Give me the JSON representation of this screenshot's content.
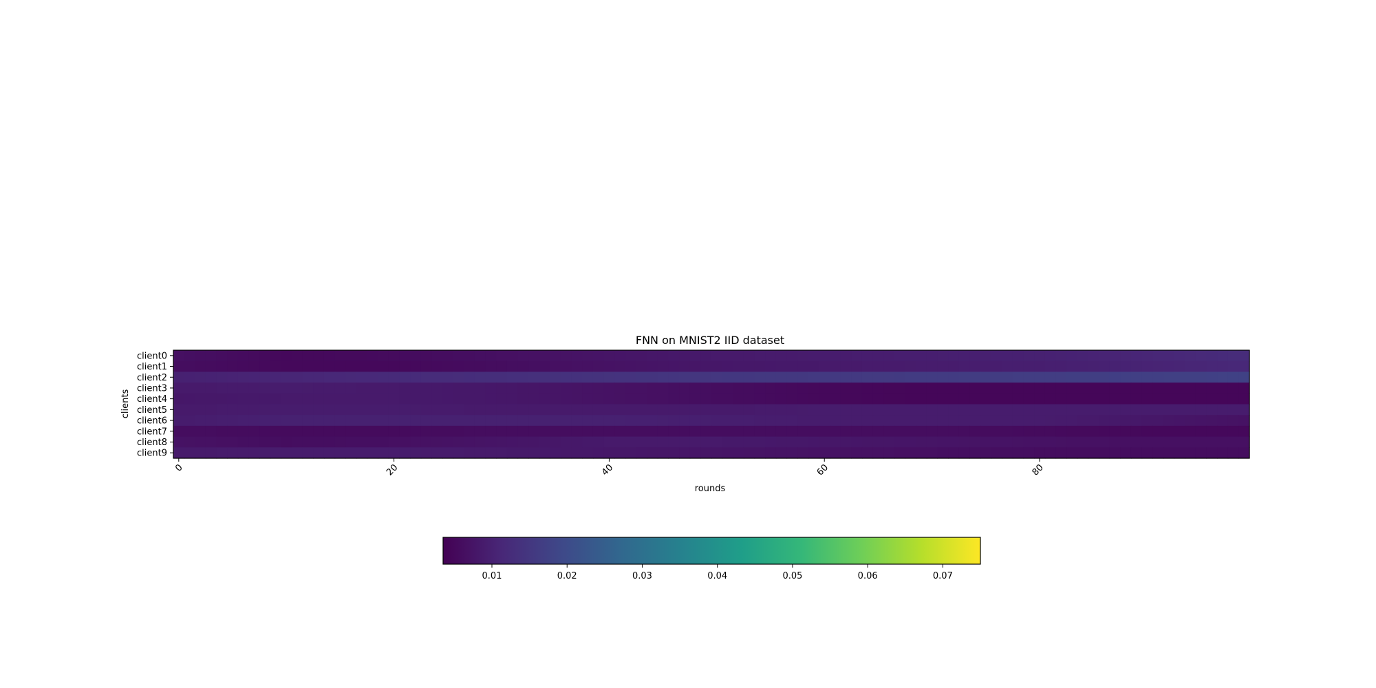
{
  "chart_data": {
    "type": "heatmap",
    "title": "FNN on MNIST2 IID dataset",
    "xlabel": "rounds",
    "ylabel": "clients",
    "rows": [
      "client0",
      "client1",
      "client2",
      "client3",
      "client4",
      "client5",
      "client6",
      "client7",
      "client8",
      "client9"
    ],
    "x_ticks": [
      0,
      20,
      40,
      60,
      80
    ],
    "x_range": [
      0,
      99
    ],
    "n_columns": 100,
    "grid": false,
    "colormap": "viridis",
    "colorbar": {
      "orientation": "horizontal",
      "placement": "bottom",
      "range": [
        0.0035,
        0.075
      ],
      "ticks": [
        0.01,
        0.02,
        0.03,
        0.04,
        0.05,
        0.06,
        0.07
      ],
      "tick_labels": [
        "0.01",
        "0.02",
        "0.03",
        "0.04",
        "0.05",
        "0.06",
        "0.07"
      ]
    },
    "row_values_at_rounds": {
      "rounds": [
        0,
        10,
        20,
        30,
        40,
        50,
        60,
        70,
        80,
        90,
        99
      ],
      "values": [
        [
          0.0065,
          0.005,
          0.0055,
          0.0065,
          0.0075,
          0.0085,
          0.009,
          0.0095,
          0.01,
          0.011,
          0.0125
        ],
        [
          0.006,
          0.005,
          0.005,
          0.006,
          0.007,
          0.008,
          0.0085,
          0.009,
          0.0095,
          0.0105,
          0.0115
        ],
        [
          0.01,
          0.011,
          0.012,
          0.013,
          0.014,
          0.015,
          0.0155,
          0.016,
          0.0165,
          0.017,
          0.0175
        ],
        [
          0.0085,
          0.009,
          0.0085,
          0.008,
          0.007,
          0.006,
          0.005,
          0.0045,
          0.0045,
          0.0045,
          0.0045
        ],
        [
          0.008,
          0.0085,
          0.0085,
          0.008,
          0.007,
          0.006,
          0.005,
          0.0045,
          0.0045,
          0.0045,
          0.0045
        ],
        [
          0.0085,
          0.009,
          0.009,
          0.0085,
          0.0085,
          0.0085,
          0.009,
          0.009,
          0.009,
          0.009,
          0.009
        ],
        [
          0.009,
          0.01,
          0.01,
          0.01,
          0.01,
          0.0095,
          0.009,
          0.009,
          0.009,
          0.008,
          0.007
        ],
        [
          0.006,
          0.0055,
          0.0055,
          0.006,
          0.006,
          0.006,
          0.006,
          0.006,
          0.0055,
          0.005,
          0.005
        ],
        [
          0.007,
          0.006,
          0.0065,
          0.0075,
          0.0085,
          0.0085,
          0.008,
          0.0075,
          0.007,
          0.0065,
          0.0065
        ],
        [
          0.0085,
          0.009,
          0.009,
          0.0085,
          0.008,
          0.0075,
          0.007,
          0.0065,
          0.006,
          0.006,
          0.006
        ]
      ]
    }
  }
}
